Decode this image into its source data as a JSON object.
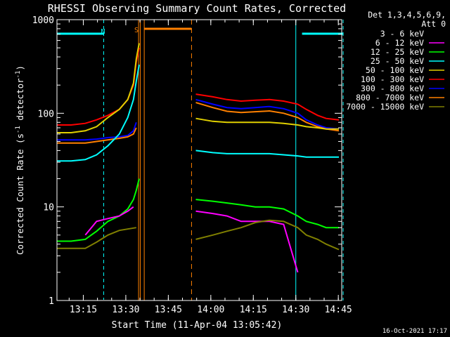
{
  "chart_data": {
    "type": "line",
    "title": "RHESSI Observing Summary Count Rates, Corrected",
    "xlabel": "Start Time (11-Apr-04 13:05:42)",
    "ylabel_main": "Corrected Count Rate (s",
    "ylabel_sup1": "-1",
    "ylabel_mid": " detector",
    "ylabel_sup2": "-1",
    "ylabel_end": ")",
    "yscale": "log",
    "ylim": [
      1,
      1000
    ],
    "xlim_minutes": [
      0,
      100.5
    ],
    "x_tick_labels": [
      "13:15",
      "13:30",
      "13:45",
      "14:00",
      "14:15",
      "14:30",
      "14:45"
    ],
    "x_tick_minutes": [
      9.3,
      24.3,
      39.3,
      54.3,
      69.3,
      84.3,
      99.3
    ],
    "y_tick_labels": [
      "1",
      "10",
      "100",
      "1000"
    ],
    "y_tick_values": [
      1,
      10,
      100,
      1000
    ],
    "timestamp": "16-Oct-2021 17:17",
    "legend": {
      "header1": "Det 1,3,4,5,6,9,",
      "header2": "Att 0",
      "entries": [
        {
          "label": "3 - 6 keV",
          "color": "#000000"
        },
        {
          "label": "6 - 12 keV",
          "color": "#ff00ff"
        },
        {
          "label": "12 - 25 keV",
          "color": "#00ff00"
        },
        {
          "label": "25 - 50 keV",
          "color": "#00ffff"
        },
        {
          "label": "50 - 100 keV",
          "color": "#e0d000"
        },
        {
          "label": "100 - 300 keV",
          "color": "#ff0000"
        },
        {
          "label": "300 - 800 keV",
          "color": "#0000ff"
        },
        {
          "label": "800 - 7000 keV",
          "color": "#ff8000"
        },
        {
          "label": "7000 - 15000 keV",
          "color": "#808000"
        }
      ]
    },
    "flags": {
      "night_label": "N",
      "saa_label": "S",
      "night_color": "#00ffff",
      "saa_color": "#ff8000",
      "night_bars_minutes": [
        [
          0,
          16.5
        ],
        [
          86.5,
          101
        ]
      ],
      "saa_bar_minutes": [
        [
          30.8,
          47.5
        ]
      ],
      "night_vlines_minutes": [
        0,
        16.5,
        84.3,
        101
      ],
      "saa_vlines_minutes": [
        28.8,
        29.4,
        30.8,
        47.5
      ]
    },
    "series": [
      {
        "name": "3 - 6 keV",
        "color": "#000000",
        "x": [
          0,
          14,
          14,
          28
        ],
        "y": [
          1,
          1,
          1,
          1
        ]
      },
      {
        "name": "100 - 300 keV",
        "color": "#ff0000",
        "x": [
          0,
          5,
          10,
          14,
          18,
          22,
          25,
          27,
          28,
          29
        ],
        "y": [
          75,
          75,
          78,
          85,
          95,
          110,
          140,
          200,
          350,
          500
        ]
      },
      {
        "name": "50 - 100 keV",
        "color": "#e0d000",
        "x": [
          0,
          5,
          10,
          14,
          18,
          22,
          25,
          27,
          28,
          29
        ],
        "y": [
          62,
          62,
          65,
          72,
          90,
          110,
          140,
          210,
          380,
          560
        ]
      },
      {
        "name": "300 - 800 keV",
        "color": "#0000ff",
        "x": [
          0,
          5,
          10,
          14,
          18,
          22,
          25,
          27,
          28
        ],
        "y": [
          52,
          52,
          52,
          53,
          55,
          56,
          58,
          65,
          80
        ]
      },
      {
        "name": "800 - 7000 keV",
        "color": "#ff8000",
        "x": [
          0,
          5,
          10,
          14,
          18,
          22,
          25,
          27,
          28
        ],
        "y": [
          48,
          48,
          48,
          50,
          52,
          54,
          56,
          60,
          70
        ]
      },
      {
        "name": "25 - 50 keV",
        "color": "#00ffff",
        "x": [
          0,
          5,
          10,
          14,
          18,
          22,
          25,
          27,
          28,
          29
        ],
        "y": [
          31,
          31,
          32,
          36,
          45,
          60,
          90,
          140,
          220,
          330
        ]
      },
      {
        "name": "12 - 25 keV",
        "color": "#00ff00",
        "x": [
          0,
          5,
          10,
          14,
          18,
          22,
          25,
          27,
          28,
          29
        ],
        "y": [
          4.3,
          4.3,
          4.5,
          5.5,
          7,
          8,
          9.5,
          12,
          15,
          20
        ]
      },
      {
        "name": "6 - 12 keV",
        "color": "#ff00ff",
        "x": [
          10,
          14,
          18,
          22,
          25,
          27
        ],
        "y": [
          5,
          7,
          7.5,
          8,
          9,
          10
        ]
      },
      {
        "name": "7000 - 15000 keV",
        "color": "#808000",
        "x": [
          0,
          10,
          14,
          18,
          22,
          25,
          28
        ],
        "y": [
          3.6,
          3.6,
          4.2,
          5,
          5.6,
          5.8,
          6
        ]
      },
      {
        "name": "100 - 300 keV",
        "color": "#ff0000",
        "x": [
          49,
          55,
          60,
          65,
          70,
          75,
          80,
          85,
          88,
          92,
          95,
          99.5
        ],
        "y": [
          160,
          150,
          140,
          135,
          138,
          140,
          135,
          125,
          110,
          95,
          88,
          85
        ]
      },
      {
        "name": "300 - 800 keV",
        "color": "#0000ff",
        "x": [
          49,
          55,
          60,
          65,
          70,
          75,
          80,
          85,
          88,
          92,
          95,
          99.5
        ],
        "y": [
          140,
          125,
          115,
          112,
          115,
          118,
          112,
          100,
          85,
          75,
          70,
          68
        ]
      },
      {
        "name": "800 - 7000 keV",
        "color": "#ff8000",
        "x": [
          49,
          55,
          60,
          65,
          70,
          75,
          80,
          85,
          88,
          92,
          95,
          99.5
        ],
        "y": [
          130,
          115,
          105,
          102,
          104,
          106,
          100,
          90,
          80,
          72,
          68,
          65
        ]
      },
      {
        "name": "50 - 100 keV",
        "color": "#e0d000",
        "x": [
          49,
          55,
          60,
          65,
          70,
          75,
          80,
          85,
          88,
          92,
          95,
          99.5
        ],
        "y": [
          88,
          82,
          80,
          80,
          80,
          80,
          78,
          75,
          72,
          70,
          68,
          68
        ]
      },
      {
        "name": "25 - 50 keV",
        "color": "#00ffff",
        "x": [
          49,
          55,
          60,
          65,
          70,
          75,
          80,
          85,
          88,
          92,
          95,
          99.5
        ],
        "y": [
          40,
          38,
          37,
          37,
          37,
          37,
          36,
          35,
          34,
          34,
          34,
          34
        ]
      },
      {
        "name": "12 - 25 keV",
        "color": "#00ff00",
        "x": [
          49,
          55,
          60,
          65,
          70,
          75,
          80,
          85,
          88,
          92,
          95,
          99.5
        ],
        "y": [
          12,
          11.5,
          11,
          10.5,
          10,
          10,
          9.5,
          8,
          7,
          6.5,
          6,
          6
        ]
      },
      {
        "name": "6 - 12 keV",
        "color": "#ff00ff",
        "x": [
          49,
          55,
          60,
          65,
          70,
          75,
          80,
          85
        ],
        "y": [
          9,
          8.5,
          8,
          7,
          7,
          7,
          6.5,
          2
        ]
      },
      {
        "name": "7000 - 15000 keV",
        "color": "#808000",
        "x": [
          49,
          55,
          60,
          65,
          70,
          75,
          80,
          85,
          88,
          92,
          95,
          99.5
        ],
        "y": [
          4.5,
          5,
          5.5,
          6,
          6.8,
          7.2,
          7,
          6,
          5,
          4.5,
          4,
          3.5
        ]
      }
    ]
  }
}
